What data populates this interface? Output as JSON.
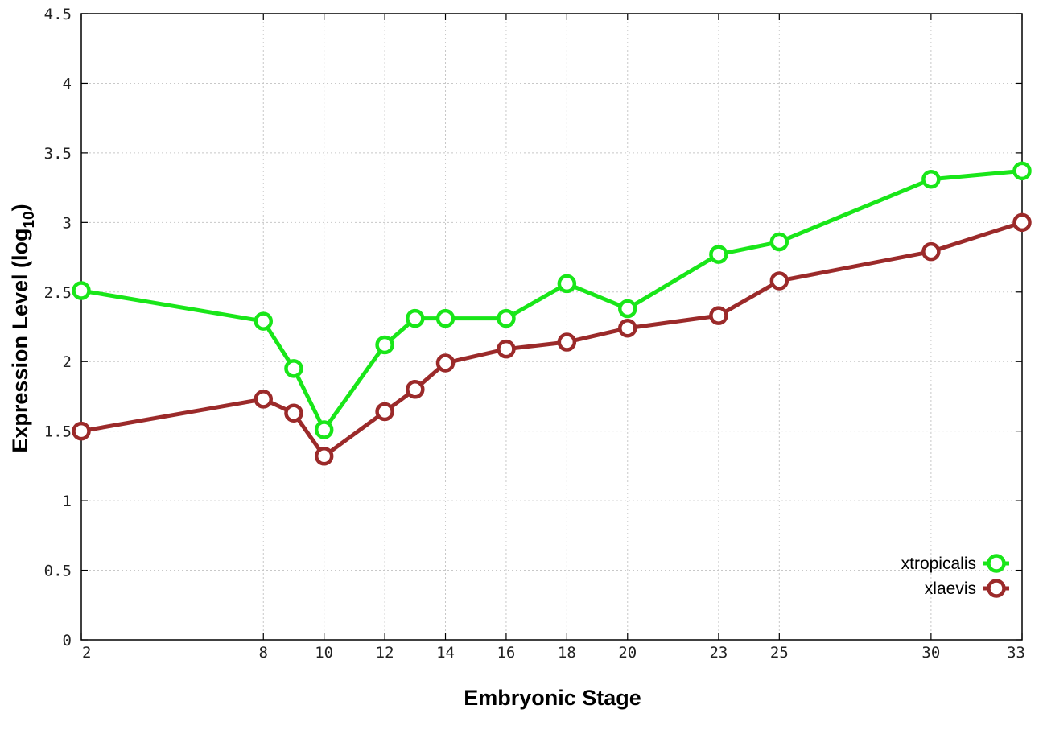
{
  "chart_data": {
    "type": "line",
    "title": "",
    "xlabel": "Embryonic Stage",
    "ylabel_main": "Expression Level (log",
    "ylabel_sub": "10",
    "ylabel_close": ")",
    "xlim": [
      2,
      33
    ],
    "ylim": [
      0,
      4.5
    ],
    "x_ticks": [
      2,
      8,
      10,
      12,
      14,
      16,
      18,
      20,
      23,
      25,
      30,
      33
    ],
    "x_tick_labels": [
      "2",
      "8",
      "10",
      "12",
      "14",
      "16",
      "18",
      "20",
      "23",
      "25",
      "30",
      "33"
    ],
    "y_ticks": [
      0,
      0.5,
      1,
      1.5,
      2,
      2.5,
      3,
      3.5,
      4,
      4.5
    ],
    "y_tick_labels": [
      "0",
      "0.5",
      "1",
      "1.5",
      "2",
      "2.5",
      "3",
      "3.5",
      "4",
      "4.5"
    ],
    "grid": true,
    "legend_position": "bottom-right",
    "x": [
      2,
      8,
      9,
      10,
      12,
      13,
      14,
      16,
      18,
      20,
      23,
      25,
      30,
      33
    ],
    "series": [
      {
        "name": "xtropicalis",
        "color": "#19e619",
        "values": [
          2.51,
          2.29,
          1.95,
          1.51,
          2.12,
          2.31,
          2.31,
          2.31,
          2.56,
          2.38,
          2.77,
          2.86,
          3.31,
          3.37
        ]
      },
      {
        "name": "xlaevis",
        "color": "#9b2a2a",
        "values": [
          1.5,
          1.73,
          1.63,
          1.32,
          1.64,
          1.8,
          1.99,
          2.09,
          2.14,
          2.24,
          2.33,
          2.58,
          2.79,
          3.0
        ]
      }
    ]
  }
}
